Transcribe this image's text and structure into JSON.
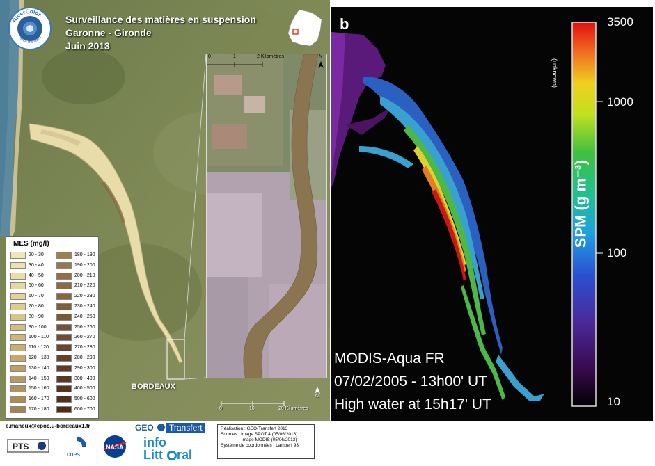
{
  "left_panel": {
    "logo_top_text": "RiverColor",
    "logo_bottom_text": "GEO-Transfert",
    "title": [
      "Surveillance des matières en suspension",
      "Garonne - Gironde",
      "Juin 2013"
    ],
    "legend": {
      "title": "MES (mg/l)",
      "items": [
        {
          "label": "20 - 30",
          "color": "#f0e6b4"
        },
        {
          "label": "30 - 40",
          "color": "#ede2ad"
        },
        {
          "label": "40 - 50",
          "color": "#eadda5"
        },
        {
          "label": "50 - 60",
          "color": "#e6d89e"
        },
        {
          "label": "60 - 70",
          "color": "#e2d296"
        },
        {
          "label": "70 - 80",
          "color": "#decc8f"
        },
        {
          "label": "80 - 90",
          "color": "#d9c588"
        },
        {
          "label": "90 - 100",
          "color": "#d4be81"
        },
        {
          "label": "100 - 110",
          "color": "#cfb77a"
        },
        {
          "label": "110 - 120",
          "color": "#caaf73"
        },
        {
          "label": "120 - 130",
          "color": "#c4a86d"
        },
        {
          "label": "130 - 140",
          "color": "#bea067"
        },
        {
          "label": "140 - 150",
          "color": "#b89961"
        },
        {
          "label": "150 - 160",
          "color": "#b2925c"
        },
        {
          "label": "160 - 170",
          "color": "#ac8b57"
        },
        {
          "label": "170 - 180",
          "color": "#a68452"
        },
        {
          "label": "180 - 190",
          "color": "#a07d4d"
        },
        {
          "label": "190 - 200",
          "color": "#9a7649"
        },
        {
          "label": "200 - 210",
          "color": "#946f45"
        },
        {
          "label": "210 - 220",
          "color": "#8e6941"
        },
        {
          "label": "220 - 230",
          "color": "#88633d"
        },
        {
          "label": "230 - 240",
          "color": "#825d3a"
        },
        {
          "label": "240 - 250",
          "color": "#7c5736"
        },
        {
          "label": "250 - 260",
          "color": "#765133"
        },
        {
          "label": "260 - 270",
          "color": "#704b30"
        },
        {
          "label": "270 - 280",
          "color": "#6a462d"
        },
        {
          "label": "280 - 290",
          "color": "#65412a"
        },
        {
          "label": "290 - 300",
          "color": "#603c27"
        },
        {
          "label": "300 - 400",
          "color": "#5b3724"
        },
        {
          "label": "400 - 500",
          "color": "#563321"
        },
        {
          "label": "500 - 600",
          "color": "#512f1f"
        },
        {
          "label": "600 - 700",
          "color": "#4c2b1c"
        }
      ]
    },
    "city_label": "BORDEAUX",
    "inset_scale": {
      "labels": [
        "0",
        "1",
        "2 Kilomètres"
      ]
    },
    "main_scale": {
      "labels": [
        "0",
        "10",
        "20 Kilomètres"
      ]
    },
    "north_label": "N"
  },
  "right_panel": {
    "panel_letter": "b",
    "colorbar": {
      "unit_label": "SPM (g m⁻³)",
      "unknown_label": "(unknown)",
      "ticks": [
        "3500",
        "1000",
        "100",
        "10"
      ]
    },
    "annotation": [
      "MODIS-Aqua FR",
      "07/02/2005 - 13h00' UT",
      "High water at 15h17' UT"
    ]
  },
  "footer": {
    "email": "e.maneux@epoc.u-bordeaux1.fr",
    "logos": [
      "PTS",
      "cnes",
      "NASA"
    ],
    "geo_transfert_1": "GEO",
    "geo_transfert_2": "Transfert",
    "infolittoral_1": "info",
    "infolittoral_2": "Litt",
    "infolittoral_3": "ral",
    "credits": [
      "Réalisation : GEO-Transfert 2013",
      "Sources : image SPOT 4 (05/06/2013)",
      "image MODIS (05/06/2013)",
      "Système de coordonnées : Lambert 93"
    ]
  }
}
